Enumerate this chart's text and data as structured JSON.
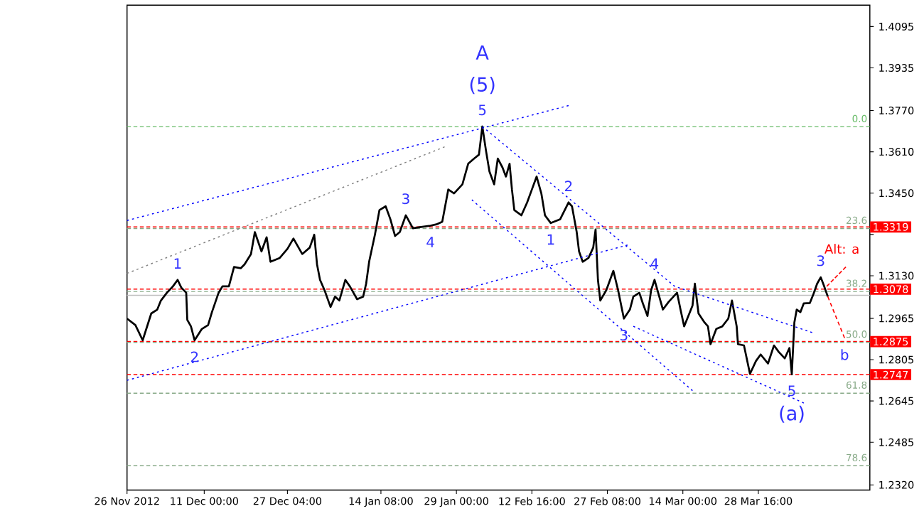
{
  "chart_data": {
    "type": "line",
    "series": [
      {
        "color": "#000000",
        "x": [
          "2012-11-26T00:00",
          "2012-11-27T15:00",
          "2012-11-29T01:00",
          "2012-11-30T17:00",
          "2012-12-01T21:00",
          "2012-12-02T14:00",
          "2012-12-03T18:00",
          "2012-12-04T22:00",
          "2012-12-05T20:00",
          "2012-12-06T13:00",
          "2012-12-07T12:00",
          "2012-12-07T17:00",
          "2012-12-08T10:00",
          "2012-12-09T03:00",
          "2012-12-10T13:00",
          "2012-12-11T18:00",
          "2012-12-12T12:00",
          "2012-12-13T19:00",
          "2012-12-14T13:00",
          "2012-12-15T19:00",
          "2012-12-16T19:00",
          "2012-12-18T02:00",
          "2012-12-18T20:00",
          "2012-12-20T02:00",
          "2012-12-20T20:00",
          "2012-12-22T03:00",
          "2012-12-23T03:00",
          "2012-12-23T21:00",
          "2012-12-25T16:00",
          "2012-12-27T04:00",
          "2012-12-28T08:00",
          "2012-12-30T01:00",
          "2012-12-31T12:00",
          "2013-01-01T09:00",
          "2013-01-01T22:00",
          "2013-01-02T12:00",
          "2013-01-03T09:00",
          "2013-01-04T13:00",
          "2013-01-05T10:00",
          "2013-01-06T06:00",
          "2013-01-07T10:00",
          "2013-01-08T07:00",
          "2013-01-09T17:00",
          "2013-01-10T21:00",
          "2013-01-11T11:00",
          "2013-01-12T01:00",
          "2013-01-13T04:00",
          "2013-01-14T01:00",
          "2013-01-15T06:00",
          "2013-01-16T04:00",
          "2013-01-17T02:00",
          "2013-01-18T00:00",
          "2013-01-19T04:00",
          "2013-01-20T13:00",
          "2013-01-22T03:00",
          "2013-01-23T23:00",
          "2013-01-25T03:00",
          "2013-01-26T06:00",
          "2013-01-27T10:00",
          "2013-01-28T13:00",
          "2013-01-30T04:00",
          "2013-01-31T07:00",
          "2013-02-01T11:00",
          "2013-02-02T09:00",
          "2013-02-03T01:00",
          "2013-02-03T18:00",
          "2013-02-04T10:00",
          "2013-02-05T08:00",
          "2013-02-06T01:00",
          "2013-02-06T23:00",
          "2013-02-07T15:00",
          "2013-02-08T08:00",
          "2013-02-08T19:00",
          "2013-02-09T06:00",
          "2013-02-10T15:00",
          "2013-02-11T18:00",
          "2013-02-12T16:00",
          "2013-02-13T14:00",
          "2013-02-14T12:00",
          "2013-02-15T05:00",
          "2013-02-16T08:00",
          "2013-02-18T04:00",
          "2013-02-19T19:00",
          "2013-02-20T11:00",
          "2013-02-21T09:00",
          "2013-02-21T20:00",
          "2013-02-22T13:00",
          "2013-02-23T16:00",
          "2013-02-24T14:00",
          "2013-02-25T01:00",
          "2013-02-25T12:00",
          "2013-02-25T23:00",
          "2013-02-27T03:00",
          "2013-02-28T12:00",
          "2013-03-01T10:00",
          "2013-03-02T13:00",
          "2013-03-03T17:00",
          "2013-03-04T09:00",
          "2013-03-05T13:00",
          "2013-03-06T05:00",
          "2013-03-07T03:00",
          "2013-03-07T20:00",
          "2013-03-08T12:00",
          "2013-03-09T10:00",
          "2013-03-10T03:00",
          "2013-03-11T06:00",
          "2013-03-12T21:00",
          "2013-03-13T13:00",
          "2013-03-14T06:00",
          "2013-03-15T21:00",
          "2013-03-16T08:00",
          "2013-03-17T01:00",
          "2013-03-18T05:00",
          "2013-03-18T21:00",
          "2013-03-19T09:00",
          "2013-03-20T12:00",
          "2013-03-21T16:00",
          "2013-03-22T20:00",
          "2013-03-23T13:00",
          "2013-03-24T11:00",
          "2013-03-24T17:00",
          "2013-03-25T21:00",
          "2013-03-27T01:00",
          "2013-03-28T05:00",
          "2013-03-29T03:00",
          "2013-03-30T13:00",
          "2013-03-31T17:00",
          "2013-04-01T15:00",
          "2013-04-02T19:00",
          "2013-04-03T17:00",
          "2013-04-04T04:00",
          "2013-04-04T16:00",
          "2013-04-05T03:00",
          "2013-04-05T20:00",
          "2013-04-06T12:00",
          "2013-04-07T16:00",
          "2013-04-08T09:00",
          "2013-04-09T02:00",
          "2013-04-09T19:00",
          "2013-04-10T11:00",
          "2013-04-11T04:00"
        ],
        "values": [
          1.2964,
          1.2939,
          1.288,
          1.2984,
          1.2999,
          1.3034,
          1.3064,
          1.3089,
          1.3114,
          1.3084,
          1.3064,
          1.2959,
          1.2934,
          1.288,
          1.2924,
          1.2939,
          1.2989,
          1.3064,
          1.3089,
          1.3089,
          1.3164,
          1.3159,
          1.3174,
          1.3214,
          1.3299,
          1.3224,
          1.3279,
          1.3184,
          1.3199,
          1.3234,
          1.3274,
          1.3214,
          1.3239,
          1.3289,
          1.3174,
          1.3114,
          1.3074,
          1.3009,
          1.3049,
          1.3034,
          1.3114,
          1.3089,
          1.3039,
          1.3049,
          1.3099,
          1.3184,
          1.3289,
          1.3384,
          1.3399,
          1.3349,
          1.3284,
          1.3299,
          1.3364,
          1.3314,
          1.3319,
          1.3324,
          1.3329,
          1.3339,
          1.3464,
          1.3449,
          1.3484,
          1.3564,
          1.3584,
          1.3599,
          1.3708,
          1.3614,
          1.3534,
          1.3484,
          1.3584,
          1.3549,
          1.3514,
          1.3564,
          1.3464,
          1.3384,
          1.3364,
          1.3414,
          1.3464,
          1.3514,
          1.3449,
          1.3364,
          1.3334,
          1.3349,
          1.3414,
          1.3399,
          1.3299,
          1.3224,
          1.3184,
          1.3199,
          1.3239,
          1.3309,
          1.3114,
          1.3034,
          1.3074,
          1.3149,
          1.3074,
          1.2964,
          1.2999,
          1.3049,
          1.3064,
          1.3024,
          1.2974,
          1.3074,
          1.3114,
          1.3049,
          1.2999,
          1.3029,
          1.3064,
          1.2999,
          1.2934,
          1.3014,
          1.3099,
          1.2984,
          1.2949,
          1.2934,
          1.2865,
          1.2924,
          1.2934,
          1.2964,
          1.3034,
          1.2934,
          1.2865,
          1.286,
          1.275,
          1.28,
          1.2825,
          1.279,
          1.286,
          1.2835,
          1.281,
          1.285,
          1.2748,
          1.2949,
          1.2999,
          1.2989,
          1.3023,
          1.3024,
          1.3059,
          1.3099,
          1.3124,
          1.3089,
          1.3049
        ]
      },
      {
        "color": "#0000ff",
        "line_style": "dotted",
        "x": [
          "2012-11-26T00:00",
          "2013-02-19T19:00"
        ],
        "values": [
          1.3344,
          1.3789
        ]
      },
      {
        "color": "#808080",
        "line_style": "dotted",
        "x": [
          "2012-11-26T00:00",
          "2013-01-26T17:00"
        ],
        "values": [
          1.3139,
          1.3629
        ]
      },
      {
        "color": "#0000ff",
        "line_style": "dotted",
        "x": [
          "2012-11-26T00:00",
          "2013-03-03T06:00"
        ],
        "values": [
          1.2725,
          1.3249
        ]
      },
      {
        "color": "#0000ff",
        "line_style": "dotted",
        "x": [
          "2013-02-03T01:00",
          "2013-03-12T10:00",
          "2013-04-08T03:00"
        ],
        "values": [
          1.3708,
          1.3089,
          1.291
        ]
      },
      {
        "color": "#0000ff",
        "line_style": "dotted",
        "x": [
          "2013-02-01T00:00",
          "2013-03-15T21:00"
        ],
        "values": [
          1.3424,
          1.2685
        ]
      },
      {
        "color": "#0000ff",
        "line_style": "dotted",
        "x": [
          "2013-03-04T09:00",
          "2013-04-06T12:00"
        ],
        "values": [
          1.2934,
          1.2637
        ]
      },
      {
        "name": "Alt: a",
        "color": "#ff0000",
        "line_style": "dashed",
        "x": [
          "2013-04-10T23:00",
          "2013-04-14T16:00"
        ],
        "values": [
          1.3089,
          1.3164
        ]
      },
      {
        "color": "#ff0000",
        "line_style": "dashed",
        "x": [
          "2013-04-11T04:00",
          "2013-04-14T10:00"
        ],
        "values": [
          1.3049,
          1.2889
        ]
      }
    ],
    "xlim": [
      "2012-11-26T00:00",
      "2013-04-19T08:00"
    ],
    "ylim": [
      1.23,
      1.4178
    ],
    "xticks": [
      {
        "value": "2012-11-26T00:00",
        "label": "26 Nov 2012"
      },
      {
        "value": "2012-12-11T00:00",
        "label": "11 Dec 00:00"
      },
      {
        "value": "2012-12-27T04:00",
        "label": "27 Dec 04:00"
      },
      {
        "value": "2013-01-14T08:00",
        "label": "14 Jan 08:00"
      },
      {
        "value": "2013-01-29T00:00",
        "label": "29 Jan 00:00"
      },
      {
        "value": "2013-02-12T16:00",
        "label": "12 Feb 16:00"
      },
      {
        "value": "2013-02-27T08:00",
        "label": "27 Feb 08:00"
      },
      {
        "value": "2013-03-14T00:00",
        "label": "14 Mar 00:00"
      },
      {
        "value": "2013-03-28T16:00",
        "label": "28 Mar 16:00"
      }
    ],
    "yticks": [
      1.4095,
      1.3935,
      {
        "value": 1.377,
        "label": "1.3770"
      },
      {
        "value": 1.361,
        "label": "1.3610"
      },
      {
        "value": 1.345,
        "label": "1.3450"
      },
      {
        "value": 1.329,
        "label": null
      },
      {
        "value": 1.313,
        "label": "1.3130"
      },
      1.2965,
      1.2805,
      1.2645,
      1.2485,
      {
        "value": 1.232,
        "label": "1.2320"
      }
    ],
    "ref_lines": [
      {
        "axis": "y",
        "value": 1.3319,
        "label": "1.3319",
        "color": "#ff0000",
        "line_style": "dashed"
      },
      {
        "axis": "y",
        "value": 1.3078,
        "label": "1.3078",
        "color": "#ff0000",
        "line_style": "dashed"
      },
      {
        "axis": "y",
        "value": 1.2875,
        "label": "1.2875",
        "color": "#ff0000",
        "line_style": "dashed"
      },
      {
        "axis": "y",
        "value": 1.2747,
        "label": "1.2747",
        "color": "#ff0000",
        "line_style": "dashed"
      },
      {
        "axis": "y",
        "value": 1.3707,
        "color": "#66bb66",
        "line_style": "dashed"
      },
      {
        "axis": "y",
        "value": 1.3313,
        "color": "#88aa88",
        "line_style": "dashed"
      },
      {
        "axis": "y",
        "value": 1.3069,
        "color": "#88aa88",
        "line_style": "dashed"
      },
      {
        "axis": "y",
        "value": 1.2872,
        "color": "#88aa88",
        "line_style": "dashed"
      },
      {
        "axis": "y",
        "value": 1.2675,
        "color": "#88aa88",
        "line_style": "dashed"
      },
      {
        "axis": "y",
        "value": 1.2394,
        "color": "#88aa88",
        "line_style": "dashed"
      },
      {
        "axis": "y",
        "value": 1.3054,
        "color": "#c0c0c0",
        "line_style": "solid"
      }
    ],
    "annotations": [
      {
        "text": "5",
        "x": "2013-02-03T01:00",
        "y": 1.3708
      },
      {
        "text": "(5)",
        "x": "2013-02-03T01:00",
        "y": 1.3708
      },
      "A",
      {
        "text": "1",
        "x": "2012-12-05T20:00",
        "y": 1.3114
      },
      {
        "text": "2",
        "x": "2012-12-09T03:00",
        "y": 1.288
      },
      {
        "text": "3",
        "x": "2013-01-19T04:00",
        "y": 1.3364
      },
      {
        "text": "4",
        "x": "2013-01-23T23:00",
        "y": 1.3324
      },
      {
        "text": "1",
        "x": "2013-02-16T08:00",
        "y": 1.3334
      },
      {
        "text": "2",
        "x": "2013-02-19T19:00",
        "y": 1.3414
      },
      {
        "text": "3",
        "x": "2013-03-02T13:00",
        "y": 1.2964
      },
      {
        "text": "4",
        "x": "2013-03-08T12:00",
        "y": 1.3114
      },
      {
        "text": "5",
        "x": "2013-04-04T04:00",
        "y": 1.2748
      },
      {
        "text": "(a)",
        "x": "2013-04-04T04:00",
        "y": 1.2748
      },
      {
        "text": "3",
        "x": "2013-04-09T19:00",
        "y": 1.3124
      },
      {
        "text": "b",
        "x": "2013-04-14T10:00",
        "y": 1.2889
      },
      {
        "text": "0.0",
        "x": "2013-04-19T08:00",
        "y": 1.3707
      },
      {
        "text": "23.6",
        "x": "2013-04-19T08:00",
        "y": 1.3313
      },
      {
        "text": "38.2",
        "x": "2013-04-19T08:00",
        "y": 1.3069
      },
      {
        "text": "50.0",
        "x": "2013-04-19T08:00",
        "y": 1.2872
      },
      {
        "text": "61.8",
        "x": "2013-04-19T08:00",
        "y": 1.2675
      },
      {
        "text": "78.6",
        "x": "2013-04-19T08:00",
        "y": 1.2394
      }
    ]
  }
}
